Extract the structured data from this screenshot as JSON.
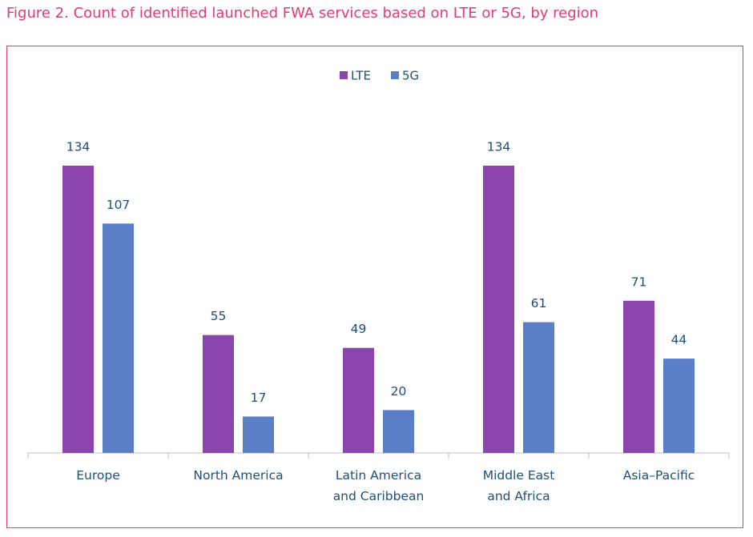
{
  "chart_data": {
    "type": "bar",
    "title": "Figure 2. Count of identified launched FWA services based on LTE or 5G, by region",
    "categories": [
      "Europe",
      "North America",
      "Latin America\nand Caribbean",
      "Middle East\nand Africa",
      "Asia–Pacific"
    ],
    "series": [
      {
        "name": "LTE",
        "color": "#8b45ad",
        "values": [
          134,
          55,
          49,
          134,
          71
        ]
      },
      {
        "name": "5G",
        "color": "#5a7fc6",
        "values": [
          107,
          17,
          20,
          61,
          44
        ]
      }
    ]
  }
}
